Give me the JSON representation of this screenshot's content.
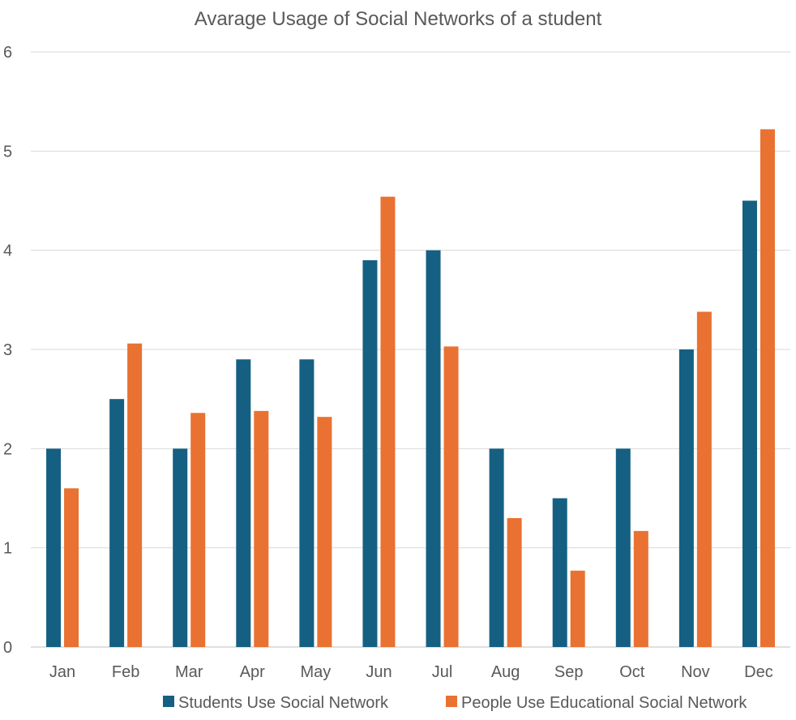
{
  "chart_data": {
    "type": "bar",
    "title": "Avarage Usage of Social Networks of a student",
    "categories": [
      "Jan",
      "Feb",
      "Mar",
      "Apr",
      "May",
      "Jun",
      "Jul",
      "Aug",
      "Sep",
      "Oct",
      "Nov",
      "Dec"
    ],
    "series": [
      {
        "name": "Students Use Social Network",
        "color": "#156082",
        "values": [
          2,
          2.5,
          2,
          2.9,
          2.9,
          3.9,
          4,
          2,
          1.5,
          2,
          3,
          4.5
        ]
      },
      {
        "name": "People Use Educational Social Network",
        "color": "#E97132",
        "values": [
          1.6,
          3.06,
          2.36,
          2.38,
          2.32,
          4.54,
          3.03,
          1.3,
          0.77,
          1.17,
          3.38,
          5.22
        ]
      }
    ],
    "ylim": [
      0,
      6
    ],
    "yticks": [
      "0",
      "1",
      "2",
      "3",
      "4",
      "5",
      "6"
    ],
    "xlabel": "",
    "ylabel": "",
    "grid": true,
    "legend": "bottom"
  }
}
